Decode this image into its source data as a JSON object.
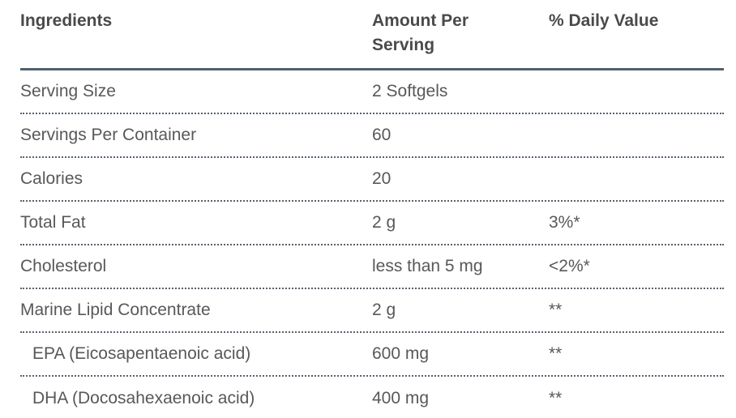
{
  "supplement_facts": {
    "header": {
      "ingredients": "Ingredients",
      "amount_per_serving": "Amount Per Serving",
      "daily_value": "% Daily Value"
    },
    "rows": [
      {
        "ingredient": "Serving Size",
        "amount": "2 Softgels",
        "daily_value": "",
        "indent": false
      },
      {
        "ingredient": "Servings Per Container",
        "amount": "60",
        "daily_value": "",
        "indent": false
      },
      {
        "ingredient": "Calories",
        "amount": "20",
        "daily_value": "",
        "indent": false
      },
      {
        "ingredient": "Total Fat",
        "amount": "2 g",
        "daily_value": "3%*",
        "indent": false
      },
      {
        "ingredient": "Cholesterol",
        "amount": "less than 5 mg",
        "daily_value": "<2%*",
        "indent": false
      },
      {
        "ingredient": "Marine Lipid Concentrate",
        "amount": "2 g",
        "daily_value": "**",
        "indent": false
      },
      {
        "ingredient": "EPA (Eicosapentaenoic acid)",
        "amount": "600 mg",
        "daily_value": "**",
        "indent": true
      },
      {
        "ingredient": "DHA (Docosahexaenoic acid)",
        "amount": "400 mg",
        "daily_value": "**",
        "indent": true
      }
    ]
  },
  "colors": {
    "header_text": "#4a4a4c",
    "body_text": "#57585a",
    "header_rule": "#51606c",
    "dotted_rule": "#56616d",
    "background": "#ffffff"
  }
}
